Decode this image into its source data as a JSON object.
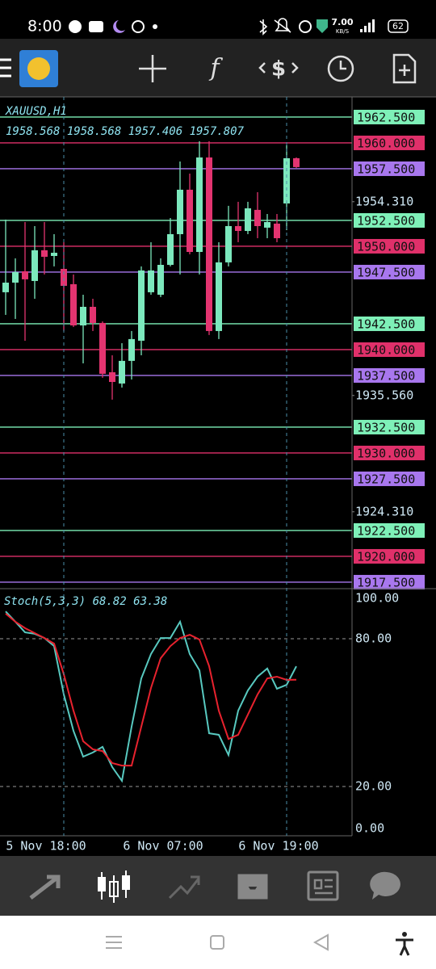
{
  "status_bar": {
    "time": "8:00",
    "speed": "7.00",
    "speed_unit": "KB/S",
    "battery": "62"
  },
  "chart_data": [
    {
      "type": "candlestick",
      "title": "XAUUSD,H1",
      "ohlc_text": "1958.568 1958.568 1957.406 1957.807",
      "open": [
        1945.55,
        1946.48,
        1947.58,
        1946.64,
        1949.61,
        1949.06,
        1947.81,
        1946.33,
        1942.34,
        1944.14,
        1942.58,
        1937.81,
        1936.72,
        1938.91,
        1940.86,
        1945.55,
        1945.31,
        1948.2,
        1951.17,
        1955.47,
        1949.45,
        1958.59,
        1941.8,
        1948.44,
        1951.95,
        1951.48,
        1953.52,
        1951.8,
        1952.19,
        1954.14,
        1958.52
      ],
      "high": [
        1952.58,
        1948.83,
        1952.34,
        1951.95,
        1952.34,
        1951.17,
        1950.39,
        1947.27,
        1945.31,
        1944.92,
        1942.73,
        1939.45,
        1940.62,
        1941.8,
        1948.05,
        1950.39,
        1948.83,
        1952.73,
        1958.2,
        1957.03,
        1960.16,
        1960.16,
        1950.39,
        1953.91,
        1954.3,
        1954.3,
        1955.23,
        1953.12,
        1953.12,
        1959.77,
        1958.59
      ],
      "low": [
        1943.36,
        1942.97,
        1940.86,
        1944.92,
        1947.27,
        1948.05,
        1941.8,
        1942.19,
        1938.67,
        1941.8,
        1937.27,
        1935.16,
        1936.33,
        1937.11,
        1939.45,
        1945.31,
        1945.08,
        1948.05,
        1947.27,
        1949.22,
        1947.27,
        1941.41,
        1941.02,
        1948.05,
        1950.39,
        1951.17,
        1950.78,
        1950.78,
        1950.39,
        1951.56,
        1957.58
      ],
      "close": [
        1946.48,
        1947.5,
        1946.8,
        1949.61,
        1948.98,
        1949.37,
        1946.17,
        1942.34,
        1944.14,
        1942.58,
        1937.66,
        1936.87,
        1938.91,
        1941.02,
        1947.66,
        1947.66,
        1948.2,
        1951.17,
        1955.47,
        1949.45,
        1958.59,
        1941.8,
        1948.44,
        1951.95,
        1951.48,
        1953.67,
        1951.95,
        1952.34,
        1950.78,
        1958.52,
        1957.66
      ],
      "up_color": "#7ce8bd",
      "down_color": "#e33470",
      "ylim": [
        1916.95,
        1964.45
      ],
      "yticks": [
        {
          "value": 1954.31,
          "label": "1954.310"
        },
        {
          "value": 1935.56,
          "label": "1935.560"
        },
        {
          "value": 1924.31,
          "label": "1924.310"
        }
      ],
      "levels": [
        {
          "value": 1962.5,
          "label": "1962.500"
        },
        {
          "value": 1960,
          "label": "1960.000"
        },
        {
          "value": 1957.5,
          "label": "1957.500"
        },
        {
          "value": 1952.5,
          "label": "1952.500"
        },
        {
          "value": 1950,
          "label": "1950.000"
        },
        {
          "value": 1947.5,
          "label": "1947.500"
        },
        {
          "value": 1942.5,
          "label": "1942.500"
        },
        {
          "value": 1940,
          "label": "1940.000"
        },
        {
          "value": 1937.5,
          "label": "1937.500"
        },
        {
          "value": 1932.5,
          "label": "1932.500"
        },
        {
          "value": 1930,
          "label": "1930.000"
        },
        {
          "value": 1927.5,
          "label": "1927.500"
        },
        {
          "value": 1922.5,
          "label": "1922.500"
        },
        {
          "value": 1920,
          "label": "1920.000"
        },
        {
          "value": 1917.5,
          "label": "1917.500"
        }
      ],
      "level_colors": [
        "#7ef0b8",
        "#e0306a",
        "#a877ee",
        "#7ef0b8",
        "#e0306a",
        "#a877ee",
        "#7ef0b8",
        "#e0306a",
        "#a877ee",
        "#7ef0b8",
        "#e0306a",
        "#a877ee",
        "#7ef0b8",
        "#e0306a",
        "#a877ee"
      ],
      "xtick_labels": [
        "5 Nov 18:00",
        "6 Nov 07:00",
        "6 Nov 19:00"
      ]
    },
    {
      "type": "line",
      "title": "Stoch(5,3,3) 68.82 63.38",
      "series": [
        {
          "color": "#58c9c0",
          "values": [
            91.1,
            86.9,
            82.6,
            82.0,
            80.3,
            77.0,
            57.4,
            42.6,
            32.1,
            33.8,
            36.1,
            27.9,
            22.3,
            44.3,
            63.9,
            73.8,
            80.3,
            80.3,
            86.9,
            73.8,
            67.2,
            41.6,
            41.0,
            32.8,
            50.8,
            59.0,
            64.6,
            67.9,
            59.7,
            61.3,
            68.82
          ]
        },
        {
          "color": "#e8222e",
          "values": [
            90.2,
            86.9,
            84.3,
            82.3,
            80.3,
            78.0,
            65.6,
            50.8,
            38.4,
            35.1,
            34.4,
            29.5,
            28.5,
            28.5,
            44.3,
            60.0,
            72.1,
            77.0,
            80.3,
            81.6,
            79.7,
            68.9,
            50.8,
            39.3,
            41.0,
            49.2,
            57.4,
            63.9,
            64.6,
            63.3,
            63.38
          ]
        }
      ],
      "ylim": [
        0,
        100
      ],
      "yticks": [
        {
          "value": 100,
          "label": "100.00"
        },
        {
          "value": 80,
          "label": "80.00"
        },
        {
          "value": 20,
          "label": "20.00"
        },
        {
          "value": 0,
          "label": "0.00"
        }
      ],
      "grid_ticks": [
        1,
        2
      ]
    }
  ]
}
